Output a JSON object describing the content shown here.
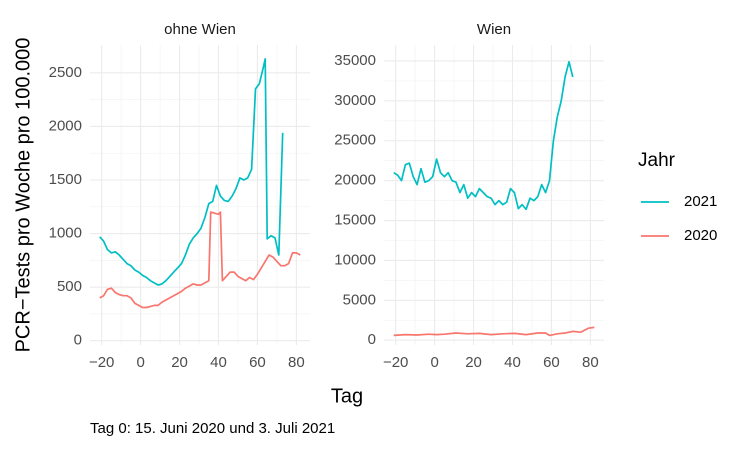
{
  "ylabel": "PCR−Tests pro Woche pro 100.000",
  "xlabel": "Tag",
  "caption": "Tag 0: 15. Juni 2020 und 3. Juli 2021",
  "legend_title": "Jahr",
  "chart_data": [
    {
      "type": "line",
      "title": "ohne Wien",
      "xlim": [
        -26,
        87
      ],
      "ylim": [
        -40,
        2760
      ],
      "xticks": [
        {
          "value": -20,
          "label": "−20"
        },
        0,
        20,
        40,
        60,
        80
      ],
      "yticks": [
        0,
        500,
        1000,
        1500,
        2000,
        2500
      ],
      "grid": true,
      "series": [
        {
          "name": "2021",
          "color": "#00BFC4",
          "x": [
            -21,
            -19,
            -17,
            -15,
            -13,
            -11,
            -9,
            -7,
            -5,
            -3,
            -1,
            1,
            3,
            5,
            7,
            9,
            11,
            13,
            15,
            17,
            19,
            21,
            23,
            25,
            27,
            29,
            31,
            33,
            35,
            37,
            39,
            41,
            43,
            45,
            47,
            49,
            51,
            53,
            55,
            57,
            59,
            61,
            63,
            64,
            65,
            67,
            69,
            71,
            73
          ],
          "values": [
            970,
            930,
            850,
            820,
            830,
            800,
            760,
            720,
            700,
            660,
            640,
            610,
            590,
            560,
            540,
            520,
            530,
            560,
            600,
            640,
            680,
            720,
            800,
            900,
            960,
            1000,
            1050,
            1150,
            1280,
            1300,
            1450,
            1350,
            1310,
            1300,
            1350,
            1420,
            1520,
            1500,
            1520,
            1600,
            2350,
            2400,
            2550,
            2630,
            950,
            980,
            960,
            800,
            1940
          ]
        },
        {
          "name": "2020",
          "color": "#F8766D",
          "x": [
            -21,
            -19,
            -17,
            -15,
            -13,
            -11,
            -9,
            -7,
            -5,
            -3,
            -1,
            1,
            3,
            5,
            7,
            9,
            11,
            13,
            15,
            17,
            19,
            21,
            23,
            25,
            27,
            29,
            31,
            33,
            35,
            36,
            38,
            40,
            41,
            42,
            44,
            46,
            48,
            50,
            52,
            54,
            56,
            58,
            60,
            62,
            64,
            66,
            68,
            70,
            72,
            74,
            76,
            78,
            80,
            82
          ],
          "values": [
            400,
            420,
            480,
            490,
            450,
            430,
            420,
            420,
            400,
            350,
            330,
            310,
            310,
            320,
            330,
            330,
            360,
            380,
            400,
            420,
            440,
            460,
            490,
            510,
            530,
            520,
            520,
            540,
            560,
            1200,
            1190,
            1180,
            1200,
            560,
            600,
            640,
            640,
            600,
            580,
            560,
            590,
            570,
            620,
            680,
            740,
            800,
            780,
            740,
            700,
            700,
            720,
            820,
            820,
            800
          ]
        }
      ]
    },
    {
      "type": "line",
      "title": "Wien",
      "xlim": [
        -26,
        87
      ],
      "ylim": [
        -600,
        37000
      ],
      "xticks": [
        {
          "value": -20,
          "label": "−20"
        },
        0,
        20,
        40,
        60,
        80
      ],
      "yticks": [
        0,
        5000,
        10000,
        15000,
        20000,
        25000,
        30000,
        35000
      ],
      "grid": true,
      "series": [
        {
          "color": "#00BFC4",
          "x": [
            -21,
            -19,
            -17,
            -15,
            -13,
            -11,
            -9,
            -7,
            -5,
            -3,
            -1,
            1,
            3,
            5,
            7,
            9,
            11,
            13,
            15,
            17,
            19,
            21,
            23,
            25,
            27,
            29,
            31,
            33,
            35,
            37,
            39,
            41,
            43,
            45,
            47,
            49,
            51,
            53,
            55,
            57,
            59,
            61,
            63,
            65,
            67,
            69,
            71
          ],
          "values": [
            21000,
            20700,
            20000,
            22000,
            22200,
            20500,
            19500,
            21500,
            19800,
            20000,
            20500,
            22700,
            21000,
            20500,
            21000,
            20000,
            19800,
            18500,
            19500,
            17800,
            18500,
            18000,
            19000,
            18500,
            18000,
            17800,
            17000,
            17500,
            17000,
            17300,
            19000,
            18500,
            16500,
            17000,
            16400,
            17800,
            17500,
            18000,
            19500,
            18500,
            20000,
            25000,
            28000,
            30000,
            33000,
            34900,
            33000
          ]
        },
        {
          "color": "#F8766D",
          "x": [
            -21,
            -15,
            -9,
            -3,
            1,
            5,
            11,
            17,
            23,
            29,
            35,
            41,
            47,
            53,
            57,
            59,
            63,
            67,
            71,
            75,
            79,
            82
          ],
          "values": [
            600,
            700,
            650,
            750,
            700,
            750,
            900,
            800,
            850,
            700,
            800,
            850,
            700,
            900,
            900,
            600,
            800,
            900,
            1100,
            1000,
            1500,
            1600
          ]
        }
      ]
    }
  ]
}
